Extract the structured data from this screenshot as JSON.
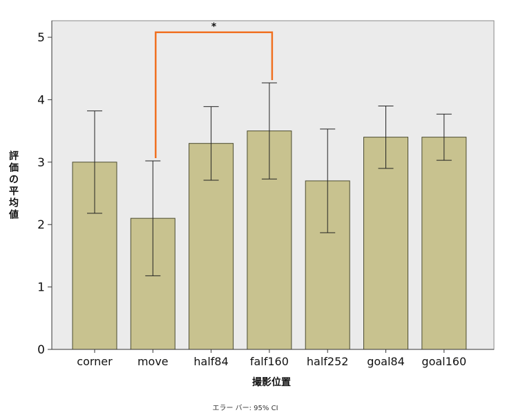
{
  "chart_data": {
    "type": "bar",
    "categories": [
      "corner",
      "move",
      "half84",
      "falf160",
      "half252",
      "goal84",
      "goal160"
    ],
    "values": [
      3.0,
      2.1,
      3.3,
      3.5,
      2.7,
      3.4,
      3.4
    ],
    "error_low": [
      2.18,
      1.18,
      2.71,
      2.73,
      1.87,
      2.9,
      3.03
    ],
    "error_high": [
      3.82,
      3.02,
      3.89,
      4.27,
      3.53,
      3.9,
      3.77
    ],
    "xlabel": "撮影位置",
    "ylabel": "評価の平均値",
    "ylim": [
      0,
      5.25
    ],
    "yticks": [
      "0",
      "1",
      "2",
      "3",
      "4",
      "5"
    ],
    "footnote": "エラー バー: 95% CI",
    "significance": {
      "from": "move",
      "to": "falf160",
      "label": "*",
      "level": 5.08
    },
    "grid": false,
    "colors": {
      "bar": "#c8c28f",
      "bar_edge": "#4a4a2e",
      "plot_bg": "#ebebeb",
      "bracket": "#f07020"
    }
  }
}
